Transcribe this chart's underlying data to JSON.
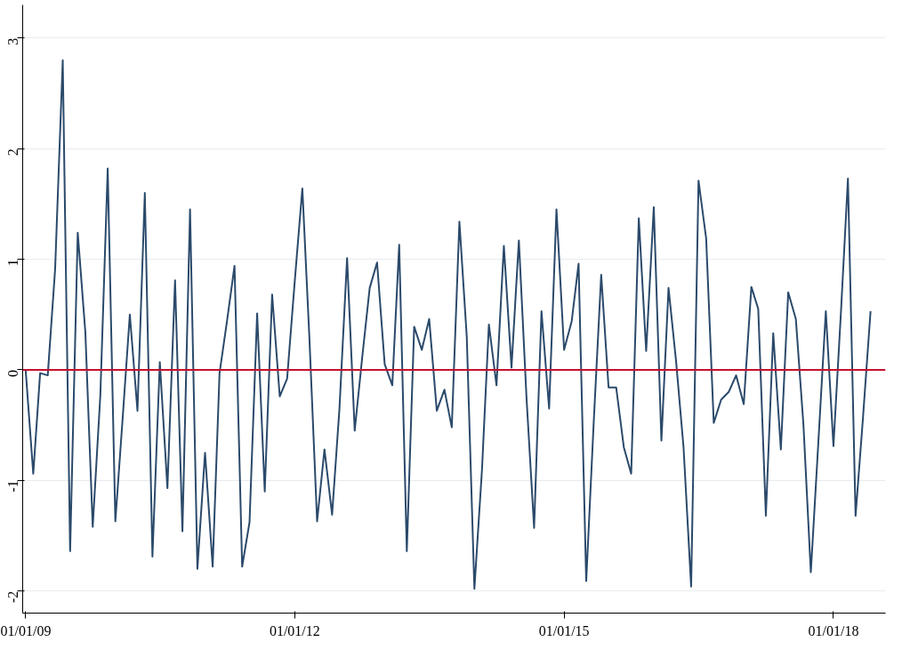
{
  "chart_data": {
    "type": "line",
    "x": [
      "2009-01",
      "2009-02",
      "2009-03",
      "2009-04",
      "2009-05",
      "2009-06",
      "2009-07",
      "2009-08",
      "2009-09",
      "2009-10",
      "2009-11",
      "2009-12",
      "2010-01",
      "2010-02",
      "2010-03",
      "2010-04",
      "2010-05",
      "2010-06",
      "2010-07",
      "2010-08",
      "2010-09",
      "2010-10",
      "2010-11",
      "2010-12",
      "2011-01",
      "2011-02",
      "2011-03",
      "2011-04",
      "2011-05",
      "2011-06",
      "2011-07",
      "2011-08",
      "2011-09",
      "2011-10",
      "2011-11",
      "2011-12",
      "2012-01",
      "2012-02",
      "2012-03",
      "2012-04",
      "2012-05",
      "2012-06",
      "2012-07",
      "2012-08",
      "2012-09",
      "2012-10",
      "2012-11",
      "2012-12",
      "2013-01",
      "2013-02",
      "2013-03",
      "2013-04",
      "2013-05",
      "2013-06",
      "2013-07",
      "2013-08",
      "2013-09",
      "2013-10",
      "2013-11",
      "2013-12",
      "2014-01",
      "2014-02",
      "2014-03",
      "2014-04",
      "2014-05",
      "2014-06",
      "2014-07",
      "2014-08",
      "2014-09",
      "2014-10",
      "2014-11",
      "2014-12",
      "2015-01",
      "2015-02",
      "2015-03",
      "2015-04",
      "2015-05",
      "2015-06",
      "2015-07",
      "2015-08",
      "2015-09",
      "2015-10",
      "2015-11",
      "2015-12",
      "2016-01",
      "2016-02",
      "2016-03",
      "2016-04",
      "2016-05",
      "2016-06",
      "2016-07",
      "2016-08",
      "2016-09",
      "2016-10",
      "2016-11",
      "2016-12",
      "2017-01",
      "2017-02",
      "2017-03",
      "2017-04",
      "2017-05",
      "2017-06",
      "2017-07",
      "2017-08",
      "2017-09",
      "2017-10",
      "2017-11",
      "2017-12",
      "2018-01",
      "2018-02",
      "2018-03",
      "2018-04",
      "2018-05",
      "2018-06"
    ],
    "series": [
      {
        "color": "#2b4a6b",
        "values": [
          0.0,
          -0.94,
          -0.03,
          -0.05,
          0.91,
          2.8,
          -1.64,
          1.24,
          0.34,
          -1.42,
          -0.23,
          1.82,
          -1.37,
          -0.4,
          0.5,
          -0.37,
          1.6,
          -1.69,
          0.07,
          -1.07,
          0.81,
          -1.46,
          1.45,
          -1.8,
          -0.75,
          -1.78,
          -0.03,
          0.45,
          0.94,
          -1.78,
          -1.38,
          0.51,
          -1.1,
          0.68,
          -0.24,
          -0.08,
          0.8,
          1.64,
          0.27,
          -1.37,
          -0.72,
          -1.31,
          -0.35,
          1.01,
          -0.55,
          0.1,
          0.74,
          0.97,
          0.05,
          -0.14,
          1.13,
          -1.64,
          0.39,
          0.18,
          0.46,
          -0.37,
          -0.18,
          -0.52,
          1.34,
          0.3,
          -1.98,
          -0.9,
          0.41,
          -0.14,
          1.12,
          0.02,
          1.17,
          -0.25,
          -1.43,
          0.53,
          -0.35,
          1.45,
          0.18,
          0.44,
          0.96,
          -1.91,
          -0.5,
          0.86,
          -0.16,
          -0.16,
          -0.7,
          -0.94,
          1.37,
          0.17,
          1.47,
          -0.64,
          0.74,
          0.07,
          -0.7,
          -1.96,
          1.71,
          1.19,
          -0.48,
          -0.27,
          -0.2,
          -0.05,
          -0.31,
          0.75,
          0.55,
          -1.32,
          0.33,
          -0.72,
          0.7,
          0.46,
          -0.5,
          -1.83,
          -0.64,
          0.53,
          -0.69,
          0.54,
          1.73,
          -1.32,
          -0.44,
          0.53
        ]
      }
    ],
    "xlim": [
      "2008-12-20",
      "2018-08-01"
    ],
    "xticks": [
      {
        "value": "2009-01-01",
        "label": "01/01/09"
      },
      {
        "value": "2012-01-01",
        "label": "01/01/12"
      },
      {
        "value": "2015-01-01",
        "label": "01/01/15"
      },
      {
        "value": "2018-01-01",
        "label": "01/01/18"
      }
    ],
    "ylim": [
      -2.2,
      3.3
    ],
    "yticks": [
      -2,
      -1,
      0,
      1,
      2,
      3
    ],
    "grid": "y",
    "ref_lines": [
      {
        "axis": "y",
        "value": 0,
        "color": "#c8102e"
      }
    ],
    "line_style": "solid"
  }
}
